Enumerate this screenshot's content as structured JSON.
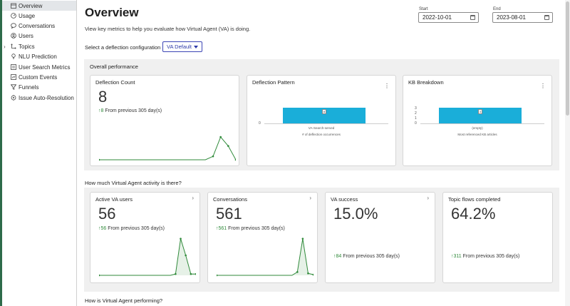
{
  "sidebar": {
    "items": [
      {
        "label": "Overview",
        "icon": "calendar-icon",
        "active": true
      },
      {
        "label": "Usage",
        "icon": "gauge-icon"
      },
      {
        "label": "Conversations",
        "icon": "chat-bubble-icon"
      },
      {
        "label": "Users",
        "icon": "users-icon"
      },
      {
        "label": "Topics",
        "icon": "topics-icon",
        "expandable": true
      },
      {
        "label": "NLU Prediction",
        "icon": "lightbulb-icon"
      },
      {
        "label": "User Search Metrics",
        "icon": "search-metrics-icon"
      },
      {
        "label": "Custom Events",
        "icon": "custom-events-icon"
      },
      {
        "label": "Funnels",
        "icon": "funnel-icon"
      },
      {
        "label": "Issue Auto-Resolution",
        "icon": "auto-resolution-icon"
      }
    ]
  },
  "header": {
    "title": "Overview",
    "description": "View key metrics to help you evaluate how Virtual Agent (VA) is doing.",
    "start_label": "Start",
    "start_value": "2022-10-01",
    "end_label": "End",
    "end_value": "2023-08-01",
    "deflection_label": "Select a deflection configuration",
    "deflection_value": "VA Default"
  },
  "overall": {
    "title": "Overall performance",
    "deflection_count": {
      "title": "Deflection Count",
      "value": "8",
      "delta": "8",
      "trend_text": "From previous 305 day(s)",
      "spark": [
        0,
        0,
        0,
        0,
        0,
        0,
        0,
        0,
        0,
        0,
        0,
        0,
        0,
        0,
        0,
        0.05,
        0.33,
        0.2,
        0
      ]
    },
    "deflection_pattern": {
      "title": "Deflection Pattern",
      "chart_data": {
        "type": "bar",
        "categories": [
          "VA-Search-served"
        ],
        "values": [
          8
        ],
        "data_labels": [
          "8"
        ],
        "yticks": [
          "0"
        ],
        "xlabel": "# of deflection occurrences"
      }
    },
    "kb_breakdown": {
      "title": "KB Breakdown",
      "chart_data": {
        "type": "bar",
        "categories": [
          "(empty)"
        ],
        "values": [
          3
        ],
        "data_labels": [
          "3"
        ],
        "yticks": [
          "3",
          "2",
          "1",
          "0"
        ],
        "xlabel": "Most referenced KB articles"
      }
    }
  },
  "activity": {
    "title": "How much Virtual Agent activity is there?",
    "cards": [
      {
        "title": "Active VA users",
        "value": "56",
        "delta": "56",
        "trend_text": "From previous 305 day(s)",
        "has_chevron": true,
        "has_spark": true
      },
      {
        "title": "Conversations",
        "value": "561",
        "delta": "561",
        "trend_text": "From previous 305 day(s)",
        "has_chevron": true,
        "has_spark": true
      },
      {
        "title": "VA success",
        "value": "15.0%",
        "delta": "84",
        "trend_text": "From previous 305 day(s)",
        "has_chevron": true,
        "has_spark": false
      },
      {
        "title": "Topic flows completed",
        "value": "64.2%",
        "delta": "311",
        "trend_text": "From previous 305 day(s)",
        "has_chevron": false,
        "has_spark": false
      }
    ],
    "spark_users": [
      0,
      0,
      0,
      0,
      0,
      0,
      0,
      0,
      0,
      0,
      0,
      0,
      0,
      0,
      0,
      0.02,
      0.55,
      0.3,
      0.02,
      0.02
    ],
    "spark_conversations": [
      0,
      0,
      0,
      0,
      0,
      0,
      0,
      0,
      0,
      0,
      0,
      0,
      0,
      0,
      0,
      0.05,
      0.55,
      0.03,
      0.01
    ]
  },
  "performance": {
    "title": "How is Virtual Agent performing?"
  },
  "colors": {
    "accent": "#2d3aa8",
    "trend_green": "#2f8a3a",
    "bar_blue": "#1aaed9",
    "sidebar_active": "#e3e6e9"
  }
}
